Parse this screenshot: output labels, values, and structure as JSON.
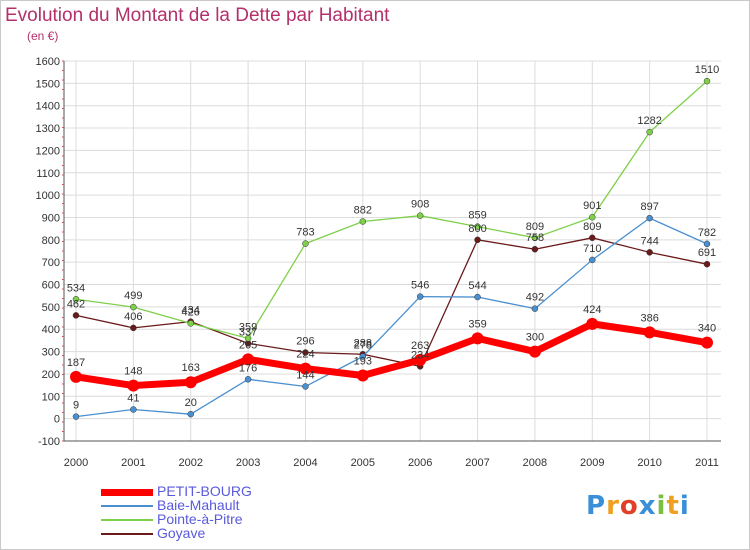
{
  "title": "Evolution du Montant de la Dette par Habitant",
  "unit": "(en €)",
  "logo": "Proxiti",
  "chart_data": {
    "type": "line",
    "title": "Evolution du Montant de la Dette par Habitant",
    "ylabel": "(en €)",
    "ylim": [
      -100,
      1600
    ],
    "yticks": [
      -100,
      0,
      100,
      200,
      300,
      400,
      500,
      600,
      700,
      800,
      900,
      1000,
      1100,
      1200,
      1300,
      1400,
      1500,
      1600
    ],
    "x": [
      "2000",
      "2001",
      "2002",
      "2003",
      "2004",
      "2005",
      "2006",
      "2007",
      "2008",
      "2009",
      "2010",
      "2011"
    ],
    "grid": true,
    "legend_position": "bottom-left",
    "series": [
      {
        "name": "PETIT-BOURG",
        "color": "#ff0000",
        "values": [
          187,
          148,
          163,
          265,
          224,
          193,
          263,
          359,
          300,
          424,
          386,
          340
        ]
      },
      {
        "name": "Baie-Mahault",
        "color": "#4a90d0",
        "values": [
          9,
          41,
          20,
          176,
          144,
          278,
          546,
          544,
          492,
          710,
          897,
          782
        ]
      },
      {
        "name": "Pointe-à-Pitre",
        "color": "#7ed04a",
        "values": [
          534,
          499,
          426,
          359,
          783,
          882,
          908,
          859,
          809,
          901,
          1282,
          1510
        ]
      },
      {
        "name": "Goyave",
        "color": "#6b1a1a",
        "values": [
          462,
          406,
          434,
          337,
          296,
          288,
          234,
          800,
          758,
          809,
          744,
          691
        ]
      }
    ]
  }
}
